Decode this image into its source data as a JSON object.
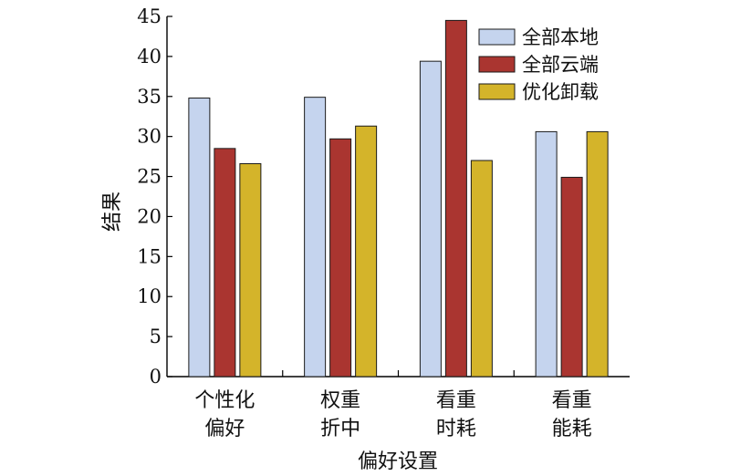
{
  "chart_data": {
    "type": "bar",
    "xlabel": "偏好设置",
    "ylabel": "结果",
    "ylim": [
      0,
      45
    ],
    "yticks": [
      0,
      5,
      10,
      15,
      20,
      25,
      30,
      35,
      40,
      45
    ],
    "categories": [
      [
        "个性化",
        "偏好"
      ],
      [
        "权重",
        "折中"
      ],
      [
        "看重",
        "时耗"
      ],
      [
        "看重",
        "能耗"
      ]
    ],
    "series": [
      {
        "name": "全部本地",
        "color": "#c5d4ee",
        "values": [
          34.8,
          34.9,
          39.4,
          30.6
        ]
      },
      {
        "name": "全部云端",
        "color": "#aa3530",
        "values": [
          28.5,
          29.7,
          44.5,
          24.9
        ]
      },
      {
        "name": "优化卸载",
        "color": "#d4b42a",
        "values": [
          26.6,
          31.3,
          27.0,
          30.6
        ]
      }
    ],
    "legend_position": "top-right",
    "grid": false
  }
}
